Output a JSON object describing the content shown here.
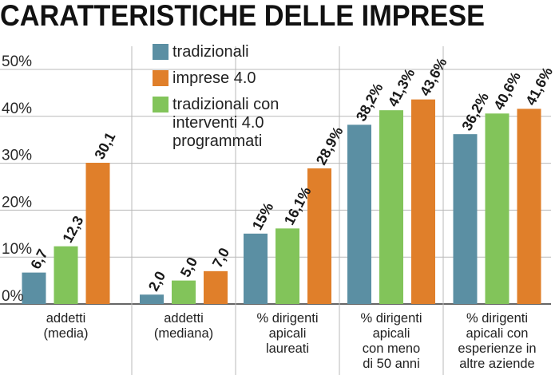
{
  "chart_data": {
    "type": "bar",
    "title": "CARATTERISTICHE DELLE IMPRESE",
    "xlabel": "",
    "ylabel": "",
    "ylim": [
      0,
      55
    ],
    "yticks": [
      "0%",
      "10%",
      "20%",
      "30%",
      "40%",
      "50%"
    ],
    "ytick_values": [
      0,
      10,
      20,
      30,
      40,
      50
    ],
    "grid": true,
    "legend_position": "top-center",
    "legend": [
      {
        "name": "tradizionali",
        "color": "#5b8fa3"
      },
      {
        "name": "imprese 4.0",
        "color": "#e07f2a"
      },
      {
        "name": "tradizionali con interventi 4.0 programmati",
        "color": "#82c45a"
      }
    ],
    "legend_lines": [
      [
        "tradizionali"
      ],
      [
        "imprese 4.0"
      ],
      [
        "tradizionali con",
        "interventi 4.0",
        "programmati"
      ]
    ],
    "groups": [
      {
        "category_lines": [
          "addetti",
          "(media)"
        ],
        "bars": [
          {
            "series": "tradizionali",
            "value": 6.7,
            "label": "6,7",
            "color": "#5b8fa3"
          },
          {
            "series": "tradizionali con interventi 4.0 programmati",
            "value": 12.3,
            "label": "12,3",
            "color": "#82c45a"
          },
          {
            "series": "imprese 4.0",
            "value": 30.1,
            "label": "30,1",
            "color": "#e07f2a"
          }
        ]
      },
      {
        "category_lines": [
          "addetti",
          "(mediana)"
        ],
        "bars": [
          {
            "series": "tradizionali",
            "value": 2.0,
            "label": "2,0",
            "color": "#5b8fa3"
          },
          {
            "series": "tradizionali con interventi 4.0 programmati",
            "value": 5.0,
            "label": "5,0",
            "color": "#82c45a"
          },
          {
            "series": "imprese 4.0",
            "value": 7.0,
            "label": "7,0",
            "color": "#e07f2a"
          }
        ]
      },
      {
        "category_lines": [
          "% dirigenti",
          "apicali",
          "laureati"
        ],
        "bars": [
          {
            "series": "tradizionali",
            "value": 15,
            "label": "15%",
            "color": "#5b8fa3"
          },
          {
            "series": "tradizionali con interventi 4.0 programmati",
            "value": 16.1,
            "label": "16,1%",
            "color": "#82c45a"
          },
          {
            "series": "imprese 4.0",
            "value": 28.9,
            "label": "28,9%",
            "color": "#e07f2a"
          }
        ]
      },
      {
        "category_lines": [
          "% dirigenti",
          "apicali",
          "con meno",
          "di 50 anni"
        ],
        "bars": [
          {
            "series": "tradizionali",
            "value": 38.2,
            "label": "38,2%",
            "color": "#5b8fa3"
          },
          {
            "series": "tradizionali con interventi 4.0 programmati",
            "value": 41.3,
            "label": "41,3%",
            "color": "#82c45a"
          },
          {
            "series": "imprese 4.0",
            "value": 43.6,
            "label": "43,6%",
            "color": "#e07f2a"
          }
        ]
      },
      {
        "category_lines": [
          "% dirigenti",
          "apicali con",
          "esperienze in",
          "altre aziende"
        ],
        "bars": [
          {
            "series": "tradizionali",
            "value": 36.2,
            "label": "36,2%",
            "color": "#5b8fa3"
          },
          {
            "series": "tradizionali con interventi 4.0 programmati",
            "value": 40.6,
            "label": "40,6%",
            "color": "#82c45a"
          },
          {
            "series": "imprese 4.0",
            "value": 41.6,
            "label": "41,6%",
            "color": "#e07f2a"
          }
        ]
      }
    ]
  }
}
